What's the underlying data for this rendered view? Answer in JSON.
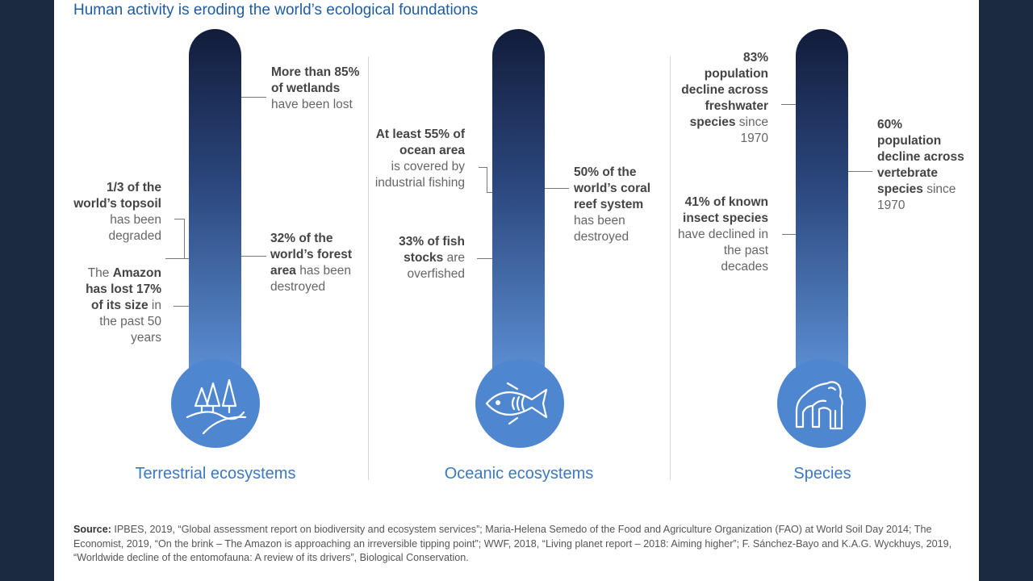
{
  "title": "Human activity is eroding the world’s ecological foundations",
  "sections": {
    "terrestrial": {
      "label": "Terrestrial ecosystems",
      "icon": "trees-icon",
      "notes": {
        "wetlands": {
          "bold": "More than 85% of wetlands",
          "rest": "have been lost"
        },
        "topsoil": {
          "bold": "1/3 of the world’s topsoil",
          "rest": "has been degraded"
        },
        "forest_bold": "32% of the world’s forest area",
        "forest_rest": " has been destroyed",
        "amazon_pre": "The ",
        "amazon_bold": "Amazon has lost 17% of its size",
        "amazon_rest": " in the past 50 years"
      }
    },
    "oceanic": {
      "label": "Oceanic ecosystems",
      "icon": "fish-icon",
      "notes": {
        "ocean": {
          "bold": "At least 55% of ocean area",
          "rest": "is covered by industrial fishing"
        },
        "coral": {
          "bold": "50% of the world’s coral reef system",
          "rest": "has been destroyed"
        },
        "fish_bold": "33% of fish stocks",
        "fish_rest": " are overfished"
      }
    },
    "species": {
      "label": "Species",
      "icon": "gorilla-icon",
      "notes": {
        "freshwater_bold": "83% population decline across freshwater species",
        "freshwater_rest": " since 1970",
        "vertebrate_bold": "60% population decline across vertebrate species",
        "vertebrate_rest": " since 1970",
        "insect_bold": "41% of known insect species",
        "insect_rest": " have declined in the past decades"
      }
    }
  },
  "source": {
    "label": "Source:",
    "text": " IPBES, 2019, “Global assessment report on biodiversity and ecosystem services”; Maria-Helena Semedo of the Food and Agriculture Organization (FAO) at World Soil Day 2014; The Economist, 2019, “On the brink – The Amazon is approaching an irreversible tipping point”; WWF, 2018, “Living planet report – 2018: Aiming higher”; F. Sánchez-Bayo and K.A.G. Wyckhuys, 2019, “Worldwide decline of the entomofauna: A review of its drivers”, Biological Conservation."
  },
  "colors": {
    "accent": "#3a78c3",
    "thermo_top": "#121c3a",
    "thermo_bottom": "#5b8ed2",
    "background": "#1c2a40"
  }
}
